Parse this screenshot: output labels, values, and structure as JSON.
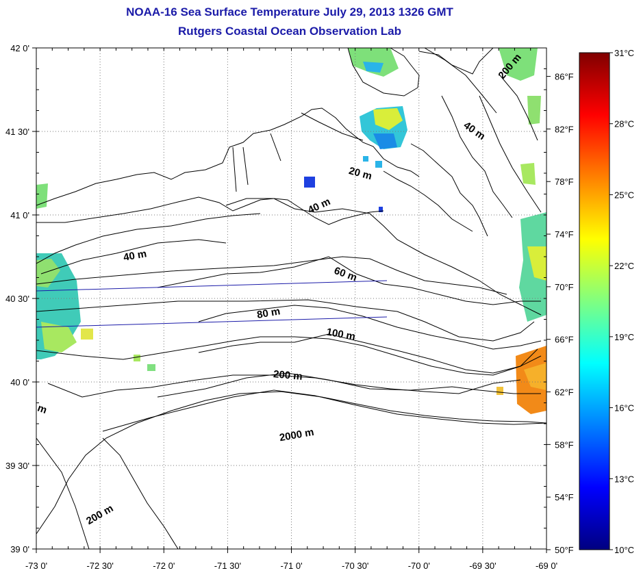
{
  "title": {
    "line1": "NOAA-16 Sea Surface Temperature July 29, 2013 1326 GMT",
    "line2": "Rutgers Coastal Ocean Observation Lab",
    "color": "#1a1aa8"
  },
  "map": {
    "lon_range": [
      -73.0,
      -69.0
    ],
    "lat_range": [
      39.0,
      42.0
    ],
    "grid": "dotted",
    "x_ticks": [
      {
        "value": -73.0,
        "label": "-73 0'"
      },
      {
        "value": -72.5,
        "label": "-72 30'"
      },
      {
        "value": -72.0,
        "label": "-72 0'"
      },
      {
        "value": -71.5,
        "label": "-71 30'"
      },
      {
        "value": -71.0,
        "label": "-71 0'"
      },
      {
        "value": -70.5,
        "label": "-70 30'"
      },
      {
        "value": -70.0,
        "label": "-70 0'"
      },
      {
        "value": -69.5,
        "label": "-69 30'"
      },
      {
        "value": -69.0,
        "label": "-69 0'"
      }
    ],
    "y_ticks": [
      {
        "value": 42.0,
        "label": "42 0'"
      },
      {
        "value": 41.5,
        "label": "41 30'"
      },
      {
        "value": 41.0,
        "label": "41 0'"
      },
      {
        "value": 40.5,
        "label": "40 30'"
      },
      {
        "value": 40.0,
        "label": "40 0'"
      },
      {
        "value": 39.5,
        "label": "39 30'"
      },
      {
        "value": 39.0,
        "label": "39 0'"
      }
    ],
    "right_f_ticks": [
      {
        "value": 86,
        "label": "86°F"
      },
      {
        "value": 82,
        "label": "82°F"
      },
      {
        "value": 78,
        "label": "78°F"
      },
      {
        "value": 74,
        "label": "74°F"
      },
      {
        "value": 70,
        "label": "70°F"
      },
      {
        "value": 66,
        "label": "66°F"
      },
      {
        "value": 62,
        "label": "62°F"
      },
      {
        "value": 58,
        "label": "58°F"
      },
      {
        "value": 54,
        "label": "54°F"
      },
      {
        "value": 50,
        "label": "50°F"
      }
    ],
    "isobath_labels": [
      "200 m",
      "40 m",
      "20 m",
      "40 m",
      "40 m",
      "60 m",
      "80 m",
      "100 m",
      "200 m",
      "2000 m",
      "200 m",
      "m"
    ],
    "land_color": "#ffffff",
    "sea_color": "#ffffff"
  },
  "colorbar": {
    "min_c": 10,
    "max_c": 31,
    "ticks": [
      {
        "value": 31,
        "label": "31°C"
      },
      {
        "value": 28,
        "label": "28°C"
      },
      {
        "value": 25,
        "label": "25°C"
      },
      {
        "value": 22,
        "label": "22°C"
      },
      {
        "value": 19,
        "label": "19°C"
      },
      {
        "value": 16,
        "label": "16°C"
      },
      {
        "value": 13,
        "label": "13°C"
      },
      {
        "value": 10,
        "label": "10°C"
      }
    ],
    "colors": [
      "#000080",
      "#0000ff",
      "#0080ff",
      "#00ffff",
      "#80ff80",
      "#ffff00",
      "#ff8000",
      "#ff0000",
      "#800000"
    ]
  }
}
